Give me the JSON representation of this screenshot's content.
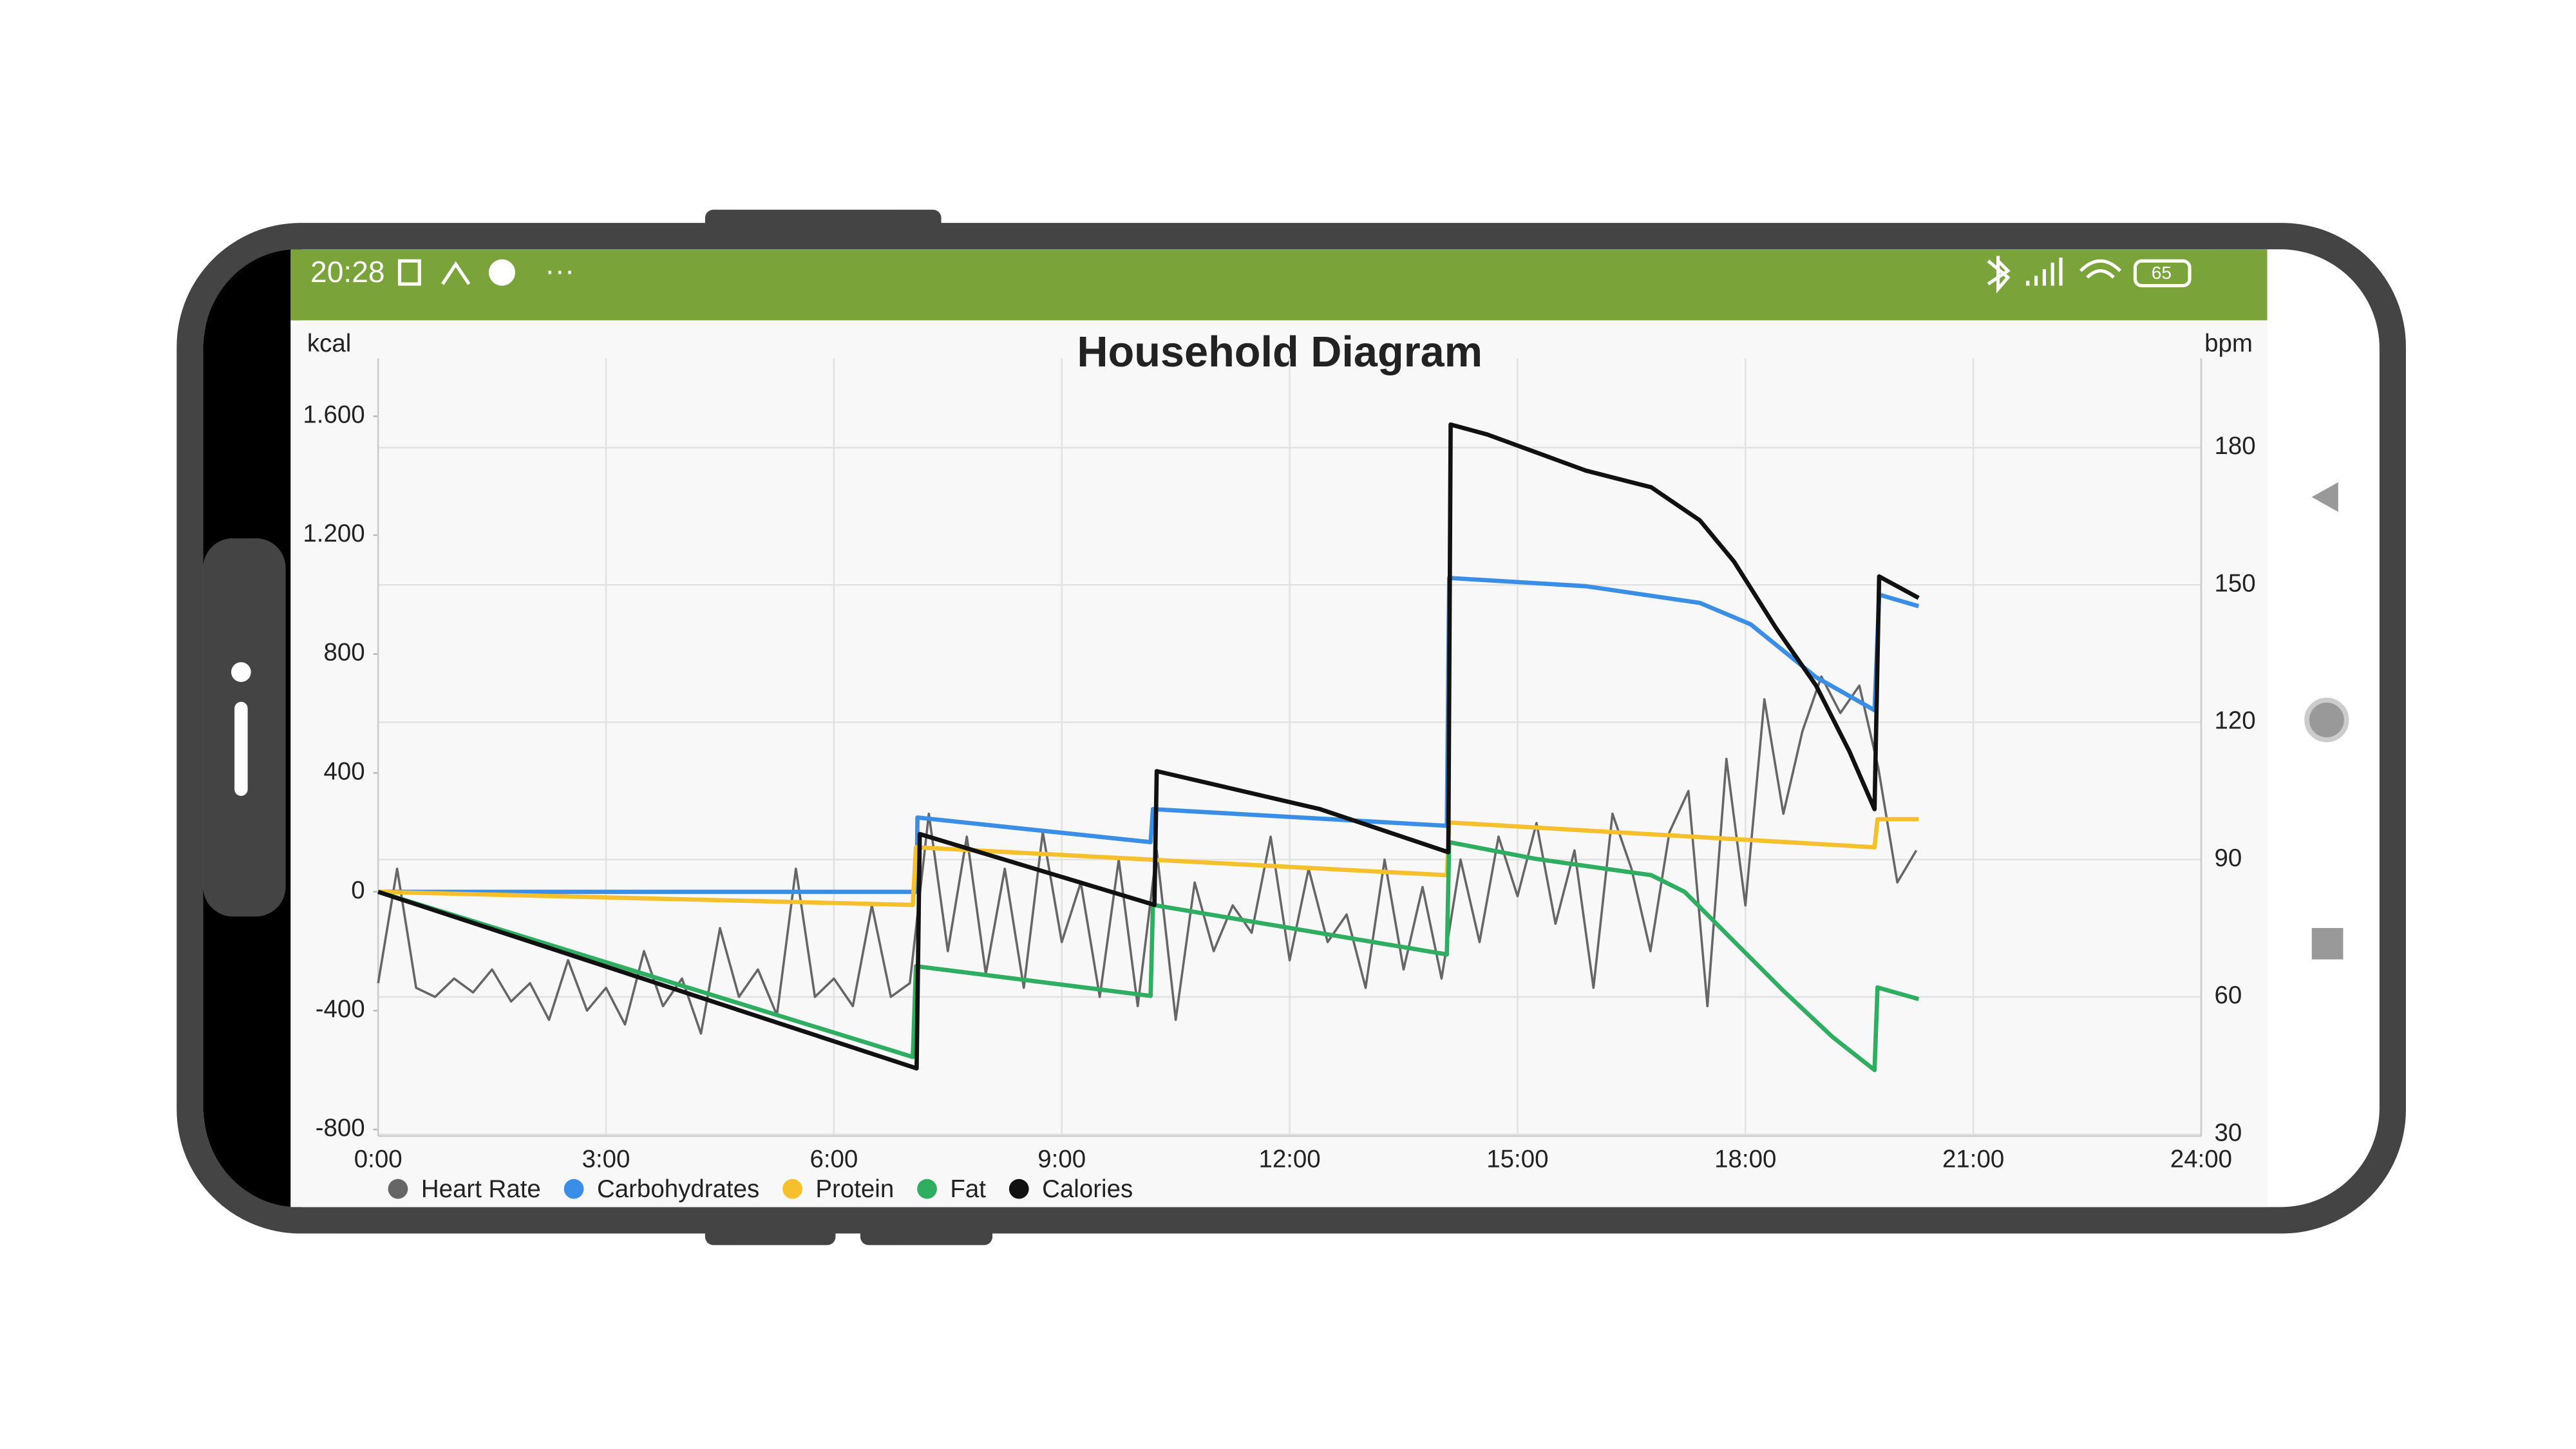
{
  "status_bar": {
    "time": "20:28",
    "battery": "65"
  },
  "chart_data": {
    "type": "line",
    "title": "Household Diagram",
    "y_label": "kcal",
    "y2_label": "bpm",
    "xlim": [
      0,
      24
    ],
    "xticks": [
      {
        "value": 0,
        "label": "0:00"
      },
      {
        "value": 3,
        "label": "3:00"
      },
      {
        "value": 6,
        "label": "6:00"
      },
      {
        "value": 9,
        "label": "9:00"
      },
      {
        "value": 12,
        "label": "12:00"
      },
      {
        "value": 15,
        "label": "15:00"
      },
      {
        "value": 18,
        "label": "18:00"
      },
      {
        "value": 21,
        "label": "21:00"
      },
      {
        "value": 24,
        "label": "24:00"
      }
    ],
    "ylim": [
      -822,
      1795
    ],
    "yticks": [
      -800,
      -400,
      0,
      400,
      800,
      {
        "value": 1200,
        "label": "1.200"
      },
      {
        "value": 1600,
        "label": "1.600"
      }
    ],
    "y2lim": [
      29.6,
      199.5
    ],
    "y2ticks": [
      30,
      60,
      90,
      120,
      150,
      180
    ],
    "grid": true,
    "legend": "bottom left",
    "series": [
      {
        "name": "Heart Rate",
        "color": "#666666",
        "axis": "y2",
        "x": [
          0,
          0.25,
          0.5,
          0.75,
          1,
          1.25,
          1.5,
          1.75,
          2,
          2.25,
          2.5,
          2.75,
          3,
          3.25,
          3.5,
          3.75,
          4,
          4.25,
          4.5,
          4.75,
          5,
          5.25,
          5.5,
          5.75,
          6,
          6.25,
          6.5,
          6.75,
          7,
          7.25,
          7.5,
          7.75,
          8,
          8.25,
          8.5,
          8.75,
          9,
          9.25,
          9.5,
          9.75,
          10,
          10.25,
          10.5,
          10.75,
          11,
          11.25,
          11.5,
          11.75,
          12,
          12.25,
          12.5,
          12.75,
          13,
          13.25,
          13.5,
          13.75,
          14,
          14.25,
          14.5,
          14.75,
          15,
          15.25,
          15.5,
          15.75,
          16,
          16.25,
          16.5,
          16.75,
          17,
          17.25,
          17.5,
          17.75,
          18,
          18.25,
          18.5,
          18.75,
          19,
          19.25,
          19.5,
          19.75,
          20,
          20.25
        ],
        "values": [
          63,
          88,
          62,
          60,
          64,
          61,
          66,
          59,
          63,
          55,
          68,
          57,
          62,
          54,
          70,
          58,
          64,
          52,
          75,
          60,
          66,
          56,
          88,
          60,
          64,
          58,
          80,
          60,
          63,
          100,
          70,
          95,
          65,
          88,
          62,
          96,
          72,
          85,
          60,
          90,
          58,
          92,
          55,
          85,
          70,
          80,
          74,
          95,
          68,
          88,
          72,
          78,
          62,
          90,
          66,
          84,
          64,
          90,
          72,
          95,
          82,
          98,
          76,
          92,
          62,
          100,
          88,
          70,
          96,
          105,
          58,
          112,
          80,
          125,
          100,
          118,
          130,
          122,
          128,
          110,
          85,
          92
        ]
      },
      {
        "name": "Carbohydrates",
        "color": "#3a8ee6",
        "x": [
          0,
          7.09,
          7.1,
          10.17,
          10.2,
          14.07,
          14.1,
          15.9,
          17.4,
          18.07,
          18.93,
          19.7,
          19.76,
          20.28
        ],
        "values": [
          0,
          0,
          250,
          167,
          278,
          222,
          1056,
          1028,
          972,
          900,
          722,
          611,
          1000,
          961
        ]
      },
      {
        "name": "Protein",
        "color": "#f5c02c",
        "x": [
          0,
          7.04,
          7.08,
          14.07,
          14.1,
          19.7,
          19.74,
          20.28
        ],
        "values": [
          0,
          -44,
          150,
          56,
          233,
          150,
          244,
          244
        ]
      },
      {
        "name": "Fat",
        "color": "#2fae62",
        "x": [
          0,
          7.04,
          7.08,
          10.17,
          10.2,
          14.07,
          14.1,
          15.24,
          16.76,
          17.2,
          17.85,
          18.5,
          19.15,
          19.7,
          19.74,
          20.28
        ],
        "values": [
          0,
          -556,
          -250,
          -350,
          -44,
          -211,
          167,
          111,
          56,
          0,
          -167,
          -333,
          -489,
          -600,
          -322,
          -361
        ]
      },
      {
        "name": "Calories",
        "color": "#111111",
        "x": [
          0,
          7.09,
          7.13,
          10.22,
          10.25,
          12.4,
          14.09,
          14.12,
          14.6,
          15.9,
          16.76,
          17.4,
          17.85,
          18.4,
          18.93,
          19.37,
          19.7,
          19.76,
          20.28
        ],
        "values": [
          0,
          -594,
          194,
          -44,
          406,
          278,
          133,
          1572,
          1539,
          1417,
          1361,
          1250,
          1111,
          889,
          694,
          472,
          278,
          1061,
          989
        ]
      }
    ]
  }
}
